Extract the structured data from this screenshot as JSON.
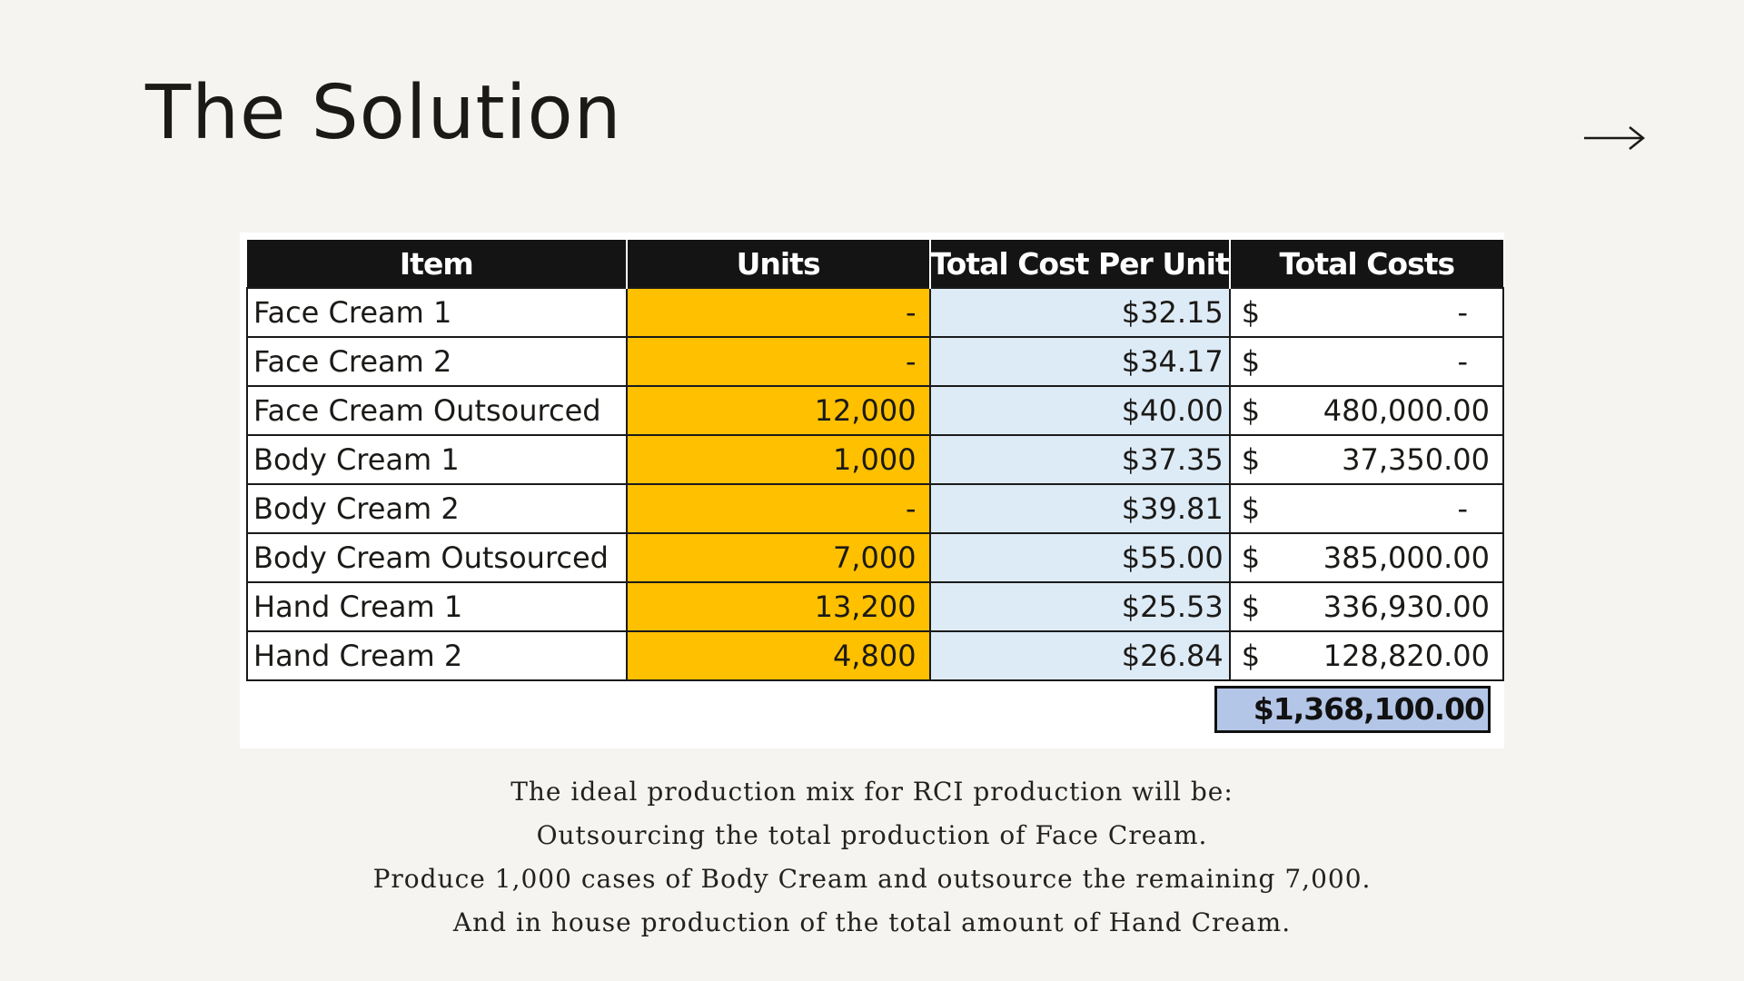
{
  "page": {
    "title": "The Solution",
    "next_icon": "arrow-right-icon"
  },
  "table": {
    "headers": {
      "item": "Item",
      "units": "Units",
      "unit_cost": "Total Cost Per Unit",
      "total": "Total Costs"
    },
    "rows": [
      {
        "item": "Face Cream 1",
        "units": "-",
        "unit_cost": "$32.15",
        "currency": "$",
        "total": "-"
      },
      {
        "item": "Face Cream 2",
        "units": "-",
        "unit_cost": "$34.17",
        "currency": "$",
        "total": "-"
      },
      {
        "item": "Face Cream Outsourced",
        "units": "12,000",
        "unit_cost": "$40.00",
        "currency": "$",
        "total": "480,000.00"
      },
      {
        "item": "Body Cream 1",
        "units": "1,000",
        "unit_cost": "$37.35",
        "currency": "$",
        "total": "37,350.00"
      },
      {
        "item": "Body Cream 2",
        "units": "-",
        "unit_cost": "$39.81",
        "currency": "$",
        "total": "-"
      },
      {
        "item": "Body Cream Outsourced",
        "units": "7,000",
        "unit_cost": "$55.00",
        "currency": "$",
        "total": "385,000.00"
      },
      {
        "item": "Hand Cream 1",
        "units": "13,200",
        "unit_cost": "$25.53",
        "currency": "$",
        "total": "336,930.00"
      },
      {
        "item": "Hand Cream 2",
        "units": "4,800",
        "unit_cost": "$26.84",
        "currency": "$",
        "total": "128,820.00"
      }
    ],
    "grand_total": "$1,368,100.00",
    "colors": {
      "header": "#141414",
      "units_fill": "#ffc000",
      "unit_cost_fill": "#ddebf7",
      "grand_total_fill": "#b4c6e7"
    }
  },
  "summary": {
    "lines": [
      "The ideal production mix for RCI production will be:",
      "Outsourcing the total production of Face Cream.",
      "Produce 1,000 cases of Body Cream and outsource the remaining 7,000.",
      "And in house production of the total amount of Hand Cream."
    ]
  }
}
